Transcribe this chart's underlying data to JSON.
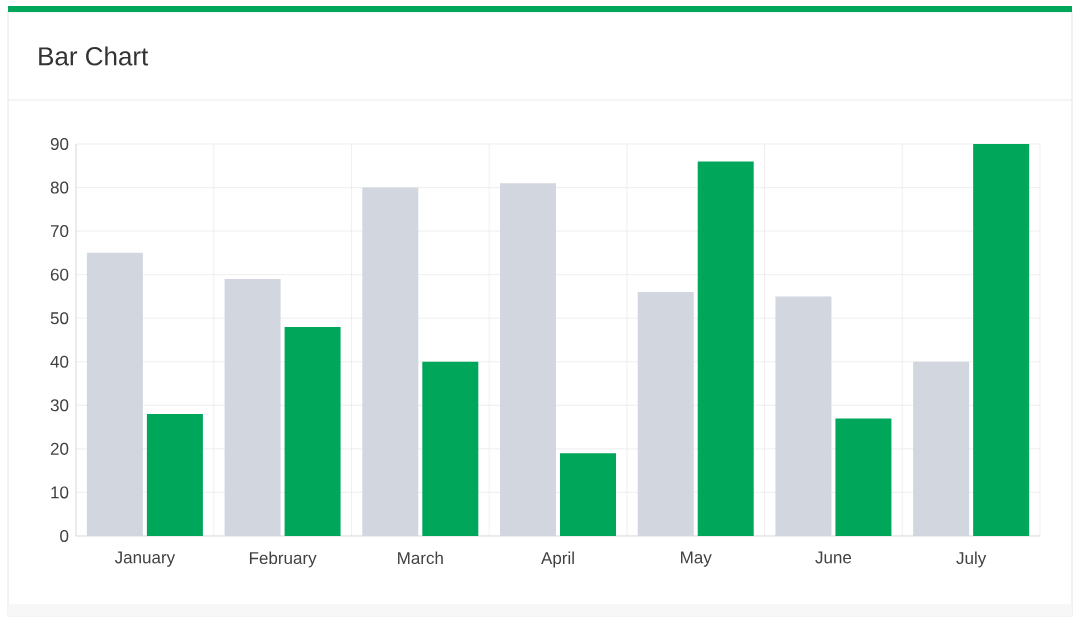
{
  "chart_data": {
    "type": "bar",
    "title": "Bar Chart",
    "categories": [
      "January",
      "February",
      "March",
      "April",
      "May",
      "June",
      "July"
    ],
    "series": [
      {
        "color": "#d2d6de",
        "values": [
          65,
          59,
          80,
          81,
          56,
          55,
          40
        ]
      },
      {
        "color": "#00a65a",
        "values": [
          28,
          48,
          40,
          19,
          86,
          27,
          90
        ]
      }
    ],
    "ylim": [
      0,
      90
    ],
    "yticks": [
      0,
      10,
      20,
      30,
      40,
      50,
      60,
      70,
      80,
      90
    ],
    "grid": true
  }
}
